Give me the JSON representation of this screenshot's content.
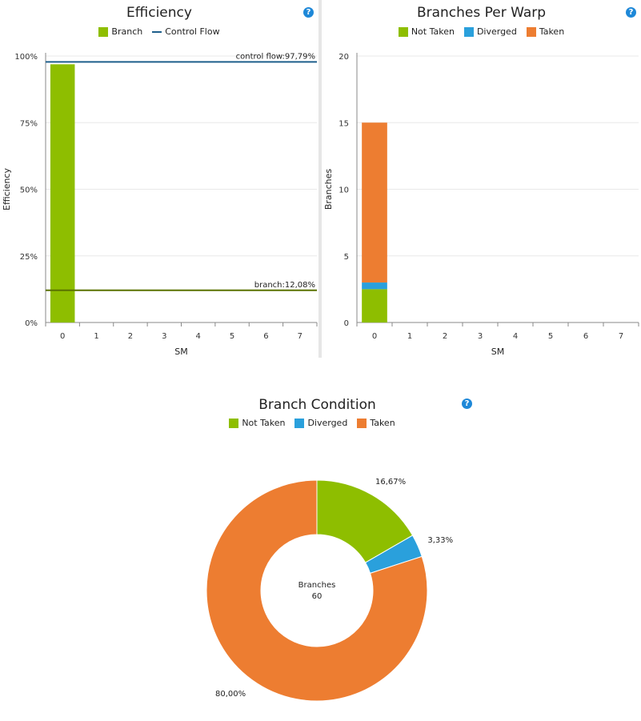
{
  "chart_data": [
    {
      "type": "bar",
      "title": "Efficiency",
      "xlabel": "SM",
      "ylabel": "Efficiency",
      "categories": [
        "0",
        "1",
        "2",
        "3",
        "4",
        "5",
        "6",
        "7"
      ],
      "series": [
        {
          "name": "Branch",
          "values": [
            96.9,
            0,
            0,
            0,
            0,
            0,
            0,
            0
          ],
          "color": "#8ebe00"
        }
      ],
      "reference_lines": [
        {
          "name": "Control Flow",
          "value": 97.79,
          "label": "control flow:97,79%",
          "color": "#1f5f8c"
        },
        {
          "name": "Branch",
          "value": 12.08,
          "label": "branch:12,08%",
          "color": "#5a7200"
        }
      ],
      "ylim": [
        0,
        100
      ],
      "yticks": [
        0,
        25,
        50,
        75,
        100
      ],
      "ytick_labels": [
        "0%",
        "25%",
        "50%",
        "75%",
        "100%"
      ],
      "legend": [
        {
          "label": "Branch",
          "kind": "box",
          "color": "#8ebe00"
        },
        {
          "label": "Control Flow",
          "kind": "line",
          "color": "#1f5f8c"
        }
      ],
      "grid": true,
      "legend_placement": "top-center"
    },
    {
      "type": "bar",
      "stacked": true,
      "title": "Branches Per Warp",
      "xlabel": "SM",
      "ylabel": "Branches",
      "categories": [
        "0",
        "1",
        "2",
        "3",
        "4",
        "5",
        "6",
        "7"
      ],
      "series": [
        {
          "name": "Not Taken",
          "values": [
            2.5,
            0,
            0,
            0,
            0,
            0,
            0,
            0
          ],
          "color": "#8ebe00"
        },
        {
          "name": "Diverged",
          "values": [
            0.5,
            0,
            0,
            0,
            0,
            0,
            0,
            0
          ],
          "color": "#2aa0dc"
        },
        {
          "name": "Taken",
          "values": [
            12,
            0,
            0,
            0,
            0,
            0,
            0,
            0
          ],
          "color": "#ed7d31"
        }
      ],
      "ylim": [
        0,
        20
      ],
      "yticks": [
        0,
        5,
        10,
        15,
        20
      ],
      "ytick_labels": [
        "0",
        "5",
        "10",
        "15",
        "20"
      ],
      "grid": true,
      "legend_placement": "top-center"
    },
    {
      "type": "pie",
      "title": "Branch Condition",
      "slices": [
        {
          "name": "Not Taken",
          "value": 16.67,
          "label": "16,67%",
          "color": "#8ebe00"
        },
        {
          "name": "Diverged",
          "value": 3.33,
          "label": "3,33%",
          "color": "#2aa0dc"
        },
        {
          "name": "Taken",
          "value": 80.0,
          "label": "80,00%",
          "color": "#ed7d31"
        }
      ],
      "center_label": "Branches",
      "center_value": "60",
      "legend_placement": "top-center"
    }
  ],
  "help_icon": "?"
}
